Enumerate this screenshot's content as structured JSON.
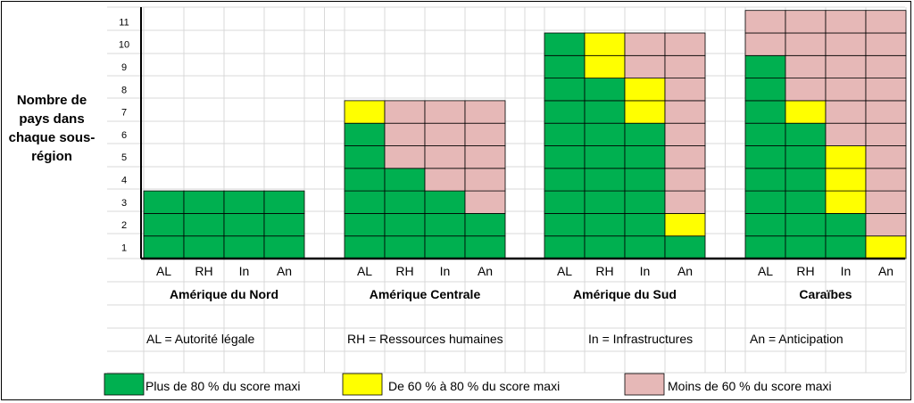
{
  "chart_data": {
    "type": "heatmap",
    "ylabel": "Nombre de pays dans chaque sous-région",
    "y_ticks": [
      "1",
      "2",
      "3",
      "4",
      "5",
      "6",
      "7",
      "8",
      "9",
      "10",
      "11"
    ],
    "ylim": [
      0,
      11
    ],
    "category_labels": [
      "AL",
      "RH",
      "In",
      "An"
    ],
    "colors": {
      "green": "#00B050",
      "yellow": "#FFFF00",
      "pink": "#E6B8B7"
    },
    "groups": [
      {
        "name": "Amérique du Nord",
        "countries": 3,
        "columns": [
          {
            "label": "AL",
            "green": 3,
            "yellow": 0,
            "pink": 0
          },
          {
            "label": "RH",
            "green": 3,
            "yellow": 0,
            "pink": 0
          },
          {
            "label": "In",
            "green": 3,
            "yellow": 0,
            "pink": 0
          },
          {
            "label": "An",
            "green": 3,
            "yellow": 0,
            "pink": 0
          }
        ]
      },
      {
        "name": "Amérique Centrale",
        "countries": 7,
        "columns": [
          {
            "label": "AL",
            "green": 6,
            "yellow": 1,
            "pink": 0
          },
          {
            "label": "RH",
            "green": 4,
            "yellow": 0,
            "pink": 3
          },
          {
            "label": "In",
            "green": 3,
            "yellow": 0,
            "pink": 4
          },
          {
            "label": "An",
            "green": 2,
            "yellow": 0,
            "pink": 5
          }
        ]
      },
      {
        "name": "Amérique du Sud",
        "countries": 10,
        "columns": [
          {
            "label": "AL",
            "green": 10,
            "yellow": 0,
            "pink": 0
          },
          {
            "label": "RH",
            "green": 8,
            "yellow": 2,
            "pink": 0
          },
          {
            "label": "In",
            "green": 6,
            "yellow": 2,
            "pink": 2
          },
          {
            "label": "An",
            "green": 1,
            "yellow": 1,
            "pink": 8
          }
        ]
      },
      {
        "name": "Caraïbes",
        "countries": 11,
        "columns": [
          {
            "label": "AL",
            "green": 9,
            "yellow": 0,
            "pink": 2
          },
          {
            "label": "RH",
            "green": 6,
            "yellow": 1,
            "pink": 4
          },
          {
            "label": "In",
            "green": 2,
            "yellow": 3,
            "pink": 6
          },
          {
            "label": "An",
            "green": 0,
            "yellow": 1,
            "pink": 10
          }
        ]
      }
    ]
  },
  "abbreviations": {
    "al": "AL = Autorité légale",
    "rh": "RH = Ressources humaines",
    "in": "In = Infrastructures",
    "an": "An = Anticipation"
  },
  "legend": {
    "green": "Plus de 80 % du score maxi",
    "yellow": "De 60 % à 80 % du score maxi",
    "pink": "Moins de 60 % du score maxi"
  }
}
